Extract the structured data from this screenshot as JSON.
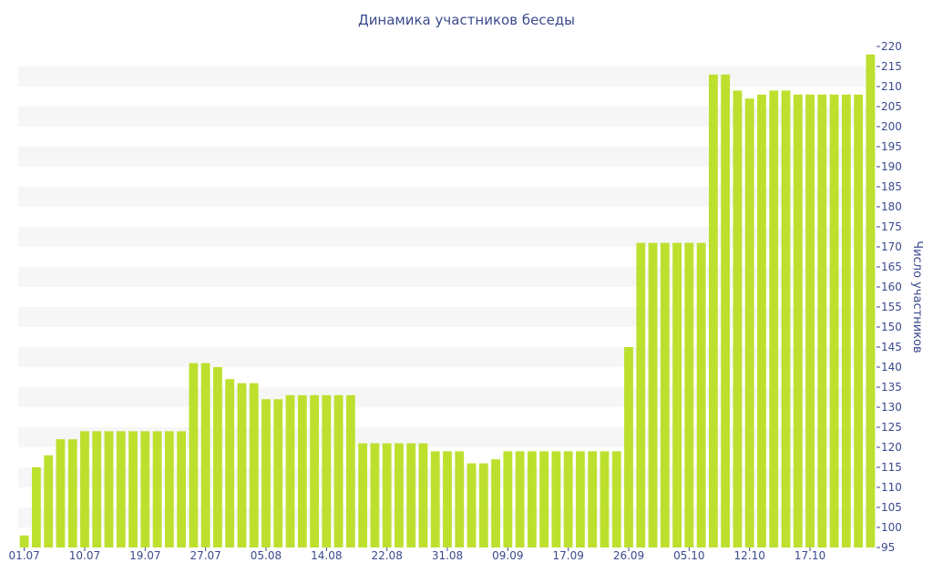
{
  "chart_data": {
    "type": "bar",
    "title": "Динамика участников беседы",
    "xlabel": "",
    "ylabel": "Число участников",
    "ylim": [
      95,
      220
    ],
    "ytick_step": 5,
    "grid": "alternating horizontal bands",
    "y_axis_position": "right",
    "bar_color": "#bde02e",
    "band_color": "#f6f6f6",
    "text_color": "#3a4a8c",
    "x_tick_labels": [
      {
        "index": 0,
        "label": "01.07"
      },
      {
        "index": 5,
        "label": "10.07"
      },
      {
        "index": 10,
        "label": "19.07"
      },
      {
        "index": 15,
        "label": "27.07"
      },
      {
        "index": 20,
        "label": "05.08"
      },
      {
        "index": 25,
        "label": "14.08"
      },
      {
        "index": 30,
        "label": "22.08"
      },
      {
        "index": 35,
        "label": "31.08"
      },
      {
        "index": 40,
        "label": "09.09"
      },
      {
        "index": 45,
        "label": "17.09"
      },
      {
        "index": 50,
        "label": "26.09"
      },
      {
        "index": 55,
        "label": "05.10"
      },
      {
        "index": 60,
        "label": "12.10"
      },
      {
        "index": 65,
        "label": "17.10"
      }
    ],
    "values": [
      98,
      115,
      118,
      122,
      122,
      124,
      124,
      124,
      124,
      124,
      124,
      124,
      124,
      124,
      141,
      141,
      140,
      137,
      136,
      136,
      132,
      132,
      133,
      133,
      133,
      133,
      133,
      133,
      121,
      121,
      121,
      121,
      121,
      121,
      119,
      119,
      119,
      116,
      116,
      117,
      119,
      119,
      119,
      119,
      119,
      119,
      119,
      119,
      119,
      119,
      145,
      171,
      171,
      171,
      171,
      171,
      171,
      213,
      213,
      209,
      207,
      208,
      209,
      209,
      208,
      208,
      208,
      208,
      208,
      208,
      218
    ]
  }
}
